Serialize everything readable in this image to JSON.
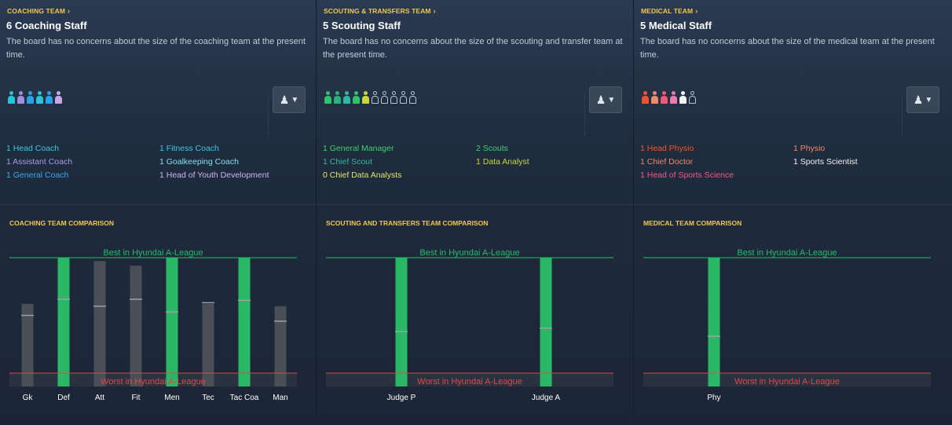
{
  "panels": [
    {
      "section_link": "COACHING TEAM",
      "title": "6 Coaching Staff",
      "description": "The board has no concerns about the size of the coaching team at the present time.",
      "people_icons": [
        {
          "color": "#27c3d8",
          "filled": true
        },
        {
          "color": "#9b8fe0",
          "filled": true
        },
        {
          "color": "#2aa0e6",
          "filled": true
        },
        {
          "color": "#27c3d8",
          "filled": true
        },
        {
          "color": "#2aa0e6",
          "filled": true
        },
        {
          "color": "#c7a7ea",
          "filled": true
        }
      ],
      "roles": [
        {
          "text": "1 Head Coach",
          "color": "#3cc7e0"
        },
        {
          "text": "1 Fitness Coach",
          "color": "#3cc7e0"
        },
        {
          "text": "1 Assistant Coach",
          "color": "#a79be6"
        },
        {
          "text": "1 Goalkeeping Coach",
          "color": "#7fe0ec"
        },
        {
          "text": "1 General Coach",
          "color": "#3aa8ef"
        },
        {
          "text": "1 Head of Youth Development",
          "color": "#cdb3ef"
        }
      ],
      "comparison_title": "COACHING TEAM COMPARISON",
      "best_label": "Best in Hyundai A-League",
      "worst_label": "Worst in Hyundai A-League",
      "chart_data": {
        "type": "bar",
        "categories": [
          "Gk",
          "Def",
          "Att",
          "Fit",
          "Men",
          "Tec",
          "Tac Coa",
          "Man"
        ],
        "values": [
          0.6,
          1.0,
          0.97,
          0.93,
          1.0,
          0.6,
          1.0,
          0.58
        ],
        "league_average": [
          0.5,
          0.64,
          0.58,
          0.64,
          0.53,
          0.61,
          0.63,
          0.45
        ],
        "is_best": [
          false,
          true,
          false,
          false,
          true,
          false,
          true,
          false
        ],
        "ylim": [
          0,
          1
        ]
      }
    },
    {
      "section_link": "SCOUTING & TRANSFERS TEAM",
      "title": "5 Scouting Staff",
      "description": "The board has no concerns about the size of the scouting and transfer team at the present time.",
      "people_icons": [
        {
          "color": "#2fc26a",
          "filled": true
        },
        {
          "color": "#2aaf7e",
          "filled": true
        },
        {
          "color": "#2fb8a0",
          "filled": true
        },
        {
          "color": "#2fc26a",
          "filled": true
        },
        {
          "color": "#c9d63a",
          "filled": true
        },
        {
          "color": "#b9c2cf",
          "filled": false
        },
        {
          "color": "#b9c2cf",
          "filled": false
        },
        {
          "color": "#b9c2cf",
          "filled": false
        },
        {
          "color": "#b9c2cf",
          "filled": false
        },
        {
          "color": "#b9c2cf",
          "filled": false
        }
      ],
      "roles": [
        {
          "text": "1 General Manager",
          "color": "#3fce73"
        },
        {
          "text": "2 Scouts",
          "color": "#3fce73"
        },
        {
          "text": "1 Chief Scout",
          "color": "#2fb8a0"
        },
        {
          "text": "1 Data Analyst",
          "color": "#c9d63a"
        },
        {
          "text": "0 Chief Data Analysts",
          "color": "#dfe86a"
        }
      ],
      "comparison_title": "SCOUTING AND TRANSFERS TEAM COMPARISON",
      "best_label": "Best in Hyundai A-League",
      "worst_label": "Worst in Hyundai A-League",
      "chart_data": {
        "type": "bar",
        "categories": [
          "Judge P",
          "Judge A"
        ],
        "values": [
          1.0,
          1.0
        ],
        "league_average": [
          0.36,
          0.39
        ],
        "is_best": [
          true,
          true
        ],
        "ylim": [
          0,
          1
        ]
      }
    },
    {
      "section_link": "MEDICAL TEAM",
      "title": "5 Medical Staff",
      "description": "The board has no concerns about the size of the medical team at the present time.",
      "people_icons": [
        {
          "color": "#f0542e",
          "filled": true
        },
        {
          "color": "#f08a6a",
          "filled": true
        },
        {
          "color": "#f05a74",
          "filled": true
        },
        {
          "color": "#ee7ab0",
          "filled": true
        },
        {
          "color": "#f3f3f3",
          "filled": true
        },
        {
          "color": "#b9c2cf",
          "filled": false
        }
      ],
      "roles": [
        {
          "text": "1 Head Physio",
          "color": "#f0542e"
        },
        {
          "text": "1 Physio",
          "color": "#f08a6a"
        },
        {
          "text": "1 Chief Doctor",
          "color": "#f08a6a"
        },
        {
          "text": "1 Sports Scientist",
          "color": "#f3f3f3"
        },
        {
          "text": "1 Head of Sports Science",
          "color": "#f05a8c"
        }
      ],
      "comparison_title": "MEDICAL TEAM COMPARISON",
      "best_label": "Best in Hyundai A-League",
      "worst_label": "Worst in Hyundai A-League",
      "chart_data": {
        "type": "bar",
        "categories": [
          "Phy"
        ],
        "values": [
          1.0
        ],
        "league_average": [
          0.32
        ],
        "is_best": [
          true
        ],
        "ylim": [
          0,
          1
        ]
      }
    }
  ]
}
